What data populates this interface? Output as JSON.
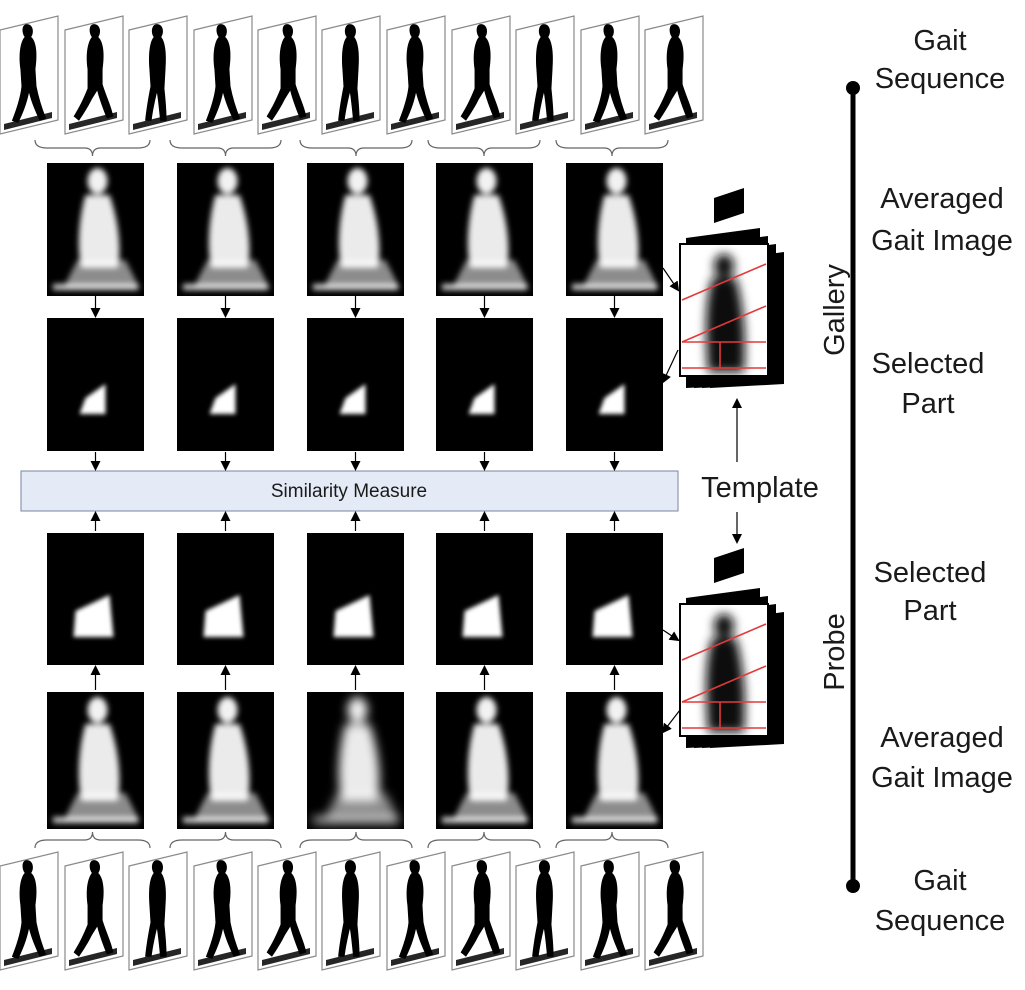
{
  "similarity_label": "Similarity Measure",
  "template_label": "Template",
  "axis": {
    "gallery_label": "Gallery",
    "probe_label": "Probe"
  },
  "stages": {
    "gallery_sequence": [
      "Gait",
      "Sequence"
    ],
    "gallery_averaged": [
      "Averaged",
      "Gait Image"
    ],
    "gallery_selected": [
      "Selected",
      "Part"
    ],
    "probe_selected": [
      "Selected",
      "Part"
    ],
    "probe_averaged": [
      "Averaged",
      "Gait Image"
    ],
    "probe_sequence": [
      "Gait",
      "Sequence"
    ]
  },
  "colors": {
    "background": "#ffffff",
    "panel": "#000000",
    "silhouette": "#ffffff",
    "similarity_box": "#e4ebf6",
    "template_lines": "#e23a3a"
  },
  "icons": [
    "walking-silhouette-icon",
    "averaged-gait-image",
    "selected-part-image",
    "template-stack-icon"
  ]
}
